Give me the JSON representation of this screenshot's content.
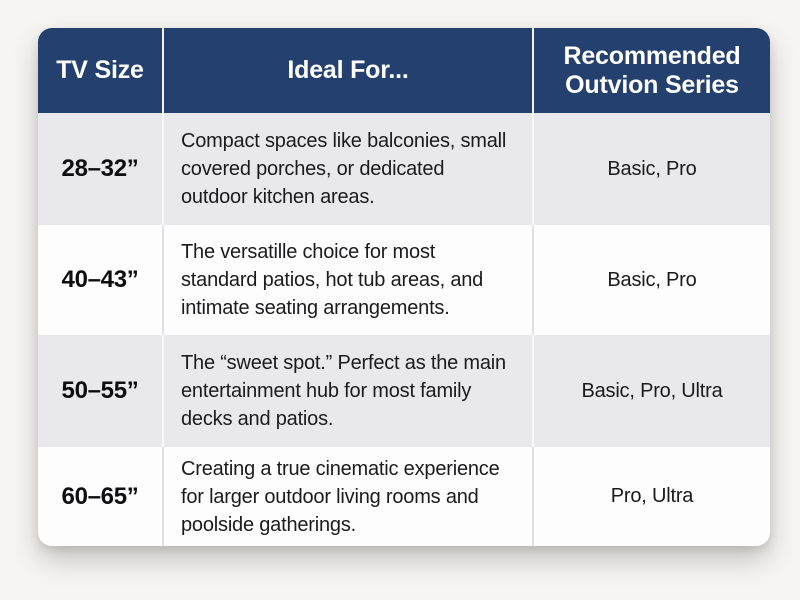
{
  "chart_data": {
    "type": "table",
    "columns": [
      "TV Size",
      "Ideal For...",
      "Recommended Outvion Series"
    ],
    "rows": [
      [
        "28–32”",
        "Compact spaces like balconies, small covered porches, or dedicated outdoor kitchen areas.",
        "Basic, Pro"
      ],
      [
        "40–43”",
        "The versatille choice for most standard patios, hot tub areas, and intimate seating arrangements.",
        "Basic, Pro"
      ],
      [
        "50–55”",
        "The “sweet spot.” Perfect as the main entertainment hub for most family decks and patios.",
        "Basic, Pro, Ultra"
      ],
      [
        "60–65”",
        "Creating a true cinematic experience for larger outdoor living rooms and poolside gatherings.",
        "Pro, Ultra"
      ]
    ],
    "layout": {
      "grid": "alternating row stripes",
      "legend": "none",
      "header_position": "top"
    },
    "colors": {
      "header_bg": "#24406e",
      "header_text": "#ffffff",
      "row_stripe_bg": "#e9e9ed",
      "row_bg": "#fdfdfd",
      "body_text": "#1b1b1d",
      "page_bg": "#f7f5f1"
    }
  }
}
